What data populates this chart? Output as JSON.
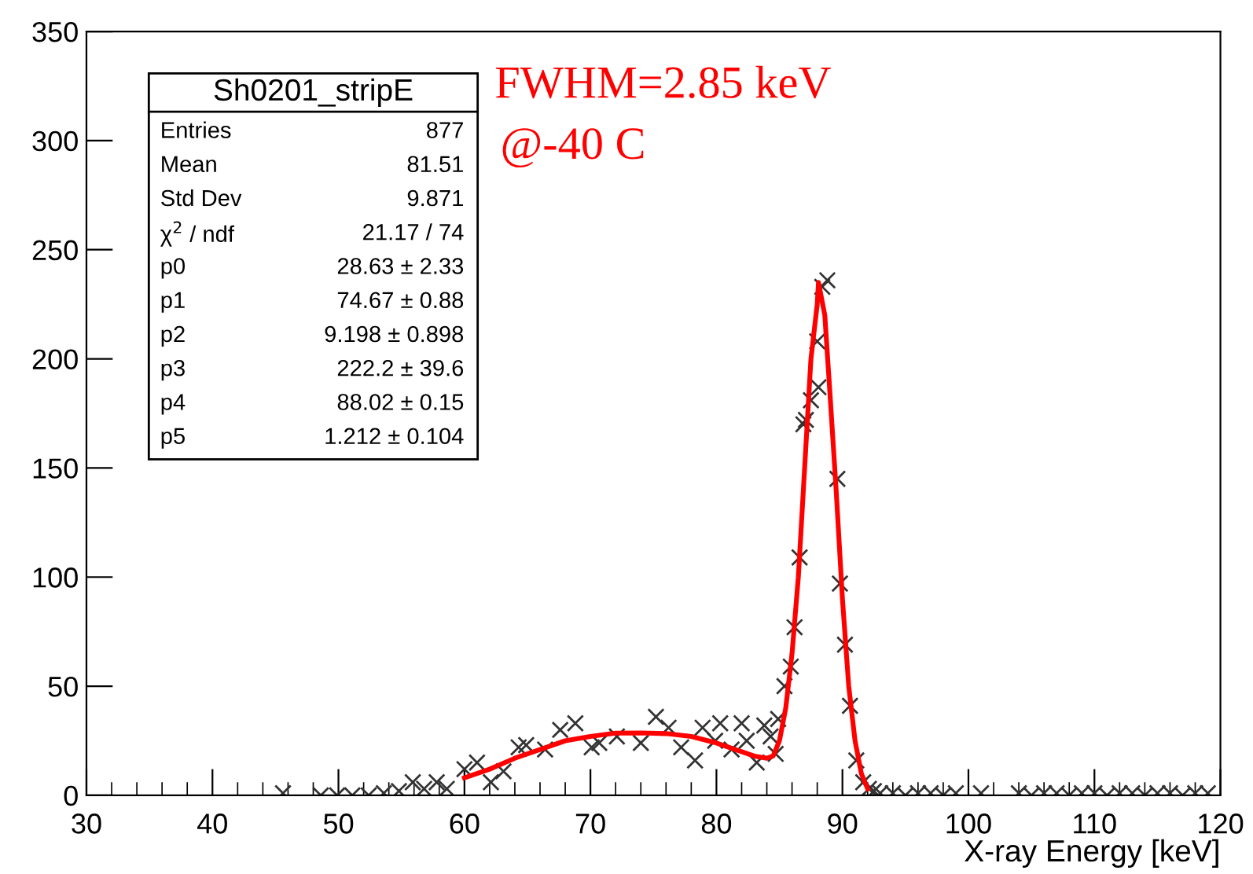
{
  "chart_data": {
    "type": "scatter",
    "xlabel": "X-ray Energy [keV]",
    "xlim": [
      30,
      120
    ],
    "xticks": [
      30,
      40,
      50,
      60,
      70,
      80,
      90,
      100,
      110,
      120
    ],
    "ylim": [
      0,
      350
    ],
    "yticks": [
      0,
      50,
      100,
      150,
      200,
      250,
      300,
      350
    ],
    "grid": false,
    "legend": false,
    "annotations": [
      "FWHM=2.85 keV",
      "@-40 C",
      "Sh0201_stripE",
      "Entries",
      "877",
      "Mean",
      "81.51",
      "Std Dev",
      "9.871",
      "χ$^{2}$ / ndf",
      "21.17 / 74",
      "p0",
      "28.63 ± 2.33",
      "p1",
      "74.67 ± 0.88",
      "p2",
      "9.198 ± 0.898",
      "p3",
      "222.2 ± 39.6",
      "p4",
      "88.02 ± 0.15",
      "p5",
      "1.212 ± 0.104"
    ],
    "series": [
      {
        "color": "#333333",
        "marker": "cross",
        "x": [
          45.6,
          48.6,
          49.9,
          51.1,
          52.4,
          53.6,
          54.8,
          55.9,
          56.8,
          57.8,
          58.6,
          60.0,
          61.0,
          62.1,
          63.1,
          64.3,
          64.9,
          66.4,
          67.6,
          68.8,
          70.1,
          70.7,
          72.1,
          74.0,
          75.2,
          76.2,
          77.2,
          78.3,
          78.9,
          79.9,
          80.3,
          81.2,
          82.0,
          82.4,
          83.2,
          83.8,
          84.3,
          84.7,
          84.9,
          85.4,
          85.9,
          86.2,
          86.6,
          86.9,
          87.1,
          87.5,
          88.1,
          88.0,
          88.4,
          88.8,
          89.6,
          89.8,
          90.2,
          90.6,
          91.1,
          91.65,
          92.1,
          92.5,
          93,
          94,
          95,
          96,
          97,
          98,
          99,
          101,
          104,
          105,
          106,
          107,
          108,
          109,
          110,
          111,
          112,
          113,
          114,
          115,
          116,
          117,
          118,
          119
        ],
        "values": [
          1,
          0,
          0,
          0,
          0,
          1,
          2,
          6,
          3,
          6,
          3,
          12,
          15,
          6,
          11,
          22,
          23,
          21,
          30,
          33,
          22,
          24,
          27,
          24,
          36,
          31,
          22,
          16,
          31,
          25,
          33,
          21,
          33,
          25,
          15,
          32,
          27,
          19,
          35,
          50,
          59,
          77,
          109,
          170,
          172,
          181,
          187,
          208,
          233,
          236,
          145,
          97,
          69,
          41,
          16,
          6,
          3,
          2,
          1,
          1,
          0,
          1,
          1,
          0,
          1,
          1,
          1,
          0,
          1,
          1,
          0,
          1,
          1,
          0,
          1,
          1,
          0,
          1,
          1,
          0,
          1,
          1
        ]
      },
      {
        "type": "line",
        "color": "#ff0000",
        "marker": "none",
        "line_style": "solid",
        "x": [
          60,
          62,
          64,
          66,
          68,
          70,
          72,
          74,
          76,
          78,
          80,
          82,
          83,
          84,
          84.5,
          85,
          85.5,
          86,
          86.5,
          87,
          87.5,
          88,
          88.1,
          88.6,
          89,
          89.5,
          90,
          90.5,
          91,
          91.5,
          92
        ],
        "values": [
          8,
          12,
          17,
          21,
          25,
          27,
          28.5,
          28.6,
          28.3,
          27,
          24,
          20,
          18,
          17,
          18,
          25,
          40,
          65,
          100,
          150,
          200,
          225,
          235,
          220,
          185,
          140,
          90,
          50,
          25,
          10,
          3
        ]
      }
    ]
  }
}
